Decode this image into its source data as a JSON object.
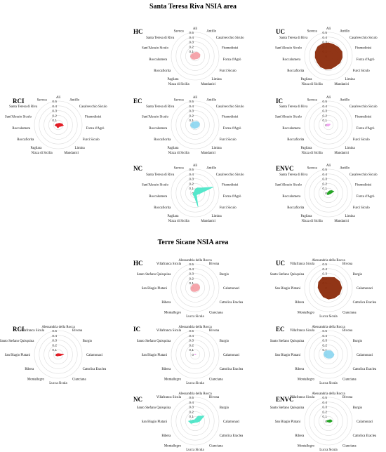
{
  "sections": [
    {
      "title": "Santa Teresa Riva NSIA area"
    },
    {
      "title": "Terre Sicane NSIA area"
    }
  ],
  "chart_data": [
    {
      "type": "radar",
      "section": 0,
      "title": "HC",
      "color": "#f4a0a6",
      "rlim": [
        0,
        0.5
      ],
      "rticks": [
        "0",
        "0.1",
        "0.2",
        "0.3",
        "0.4",
        "0.5"
      ],
      "categories": [
        "Alì",
        "Antillo",
        "Casalvecchio Siculo",
        "Fiumedinisi",
        "Forza d'Agrò",
        "Furci Siculo",
        "Limina",
        "Mandanici",
        "Nizza di Sicilia",
        "Pagliara",
        "Roccafiorita",
        "Roccalumera",
        "Sant'Alessio Siculo",
        "Santa Teresa di Riva",
        "Savoca"
      ],
      "values": [
        0.08,
        0.09,
        0.1,
        0.11,
        0.1,
        0.08,
        0.07,
        0.06,
        0.07,
        0.08,
        0.09,
        0.1,
        0.09,
        0.08,
        0.07
      ]
    },
    {
      "type": "radar",
      "section": 0,
      "title": "UC",
      "color": "#8b2a0a",
      "rlim": [
        0,
        0.5
      ],
      "rticks": [
        "0",
        "0.1",
        "0.2",
        "0.3",
        "0.4",
        "0.5"
      ],
      "categories": [
        "Alì",
        "Antillo",
        "Casalvecchio Siculo",
        "Fiumedinisi",
        "Forza d'Agrò",
        "Furci Siculo",
        "Limina",
        "Mandanici",
        "Nizza di Sicilia",
        "Pagliara",
        "Roccafiorita",
        "Roccalumera",
        "Sant'Alessio Siculo",
        "Santa Teresa di Riva",
        "Savoca"
      ],
      "values": [
        0.28,
        0.27,
        0.28,
        0.3,
        0.29,
        0.28,
        0.26,
        0.27,
        0.28,
        0.28,
        0.27,
        0.28,
        0.29,
        0.3,
        0.29
      ]
    },
    {
      "type": "radar",
      "section": 0,
      "title": "RCI",
      "color": "#e3121b",
      "rlim": [
        0,
        0.5
      ],
      "rticks": [
        "0",
        "0.1",
        "0.2",
        "0.3",
        "0.4",
        "0.5"
      ],
      "categories": [
        "Alì",
        "Antillo",
        "Casalvecchio Siculo",
        "Fiumedinisi",
        "Forza d'Agrò",
        "Furci Siculo",
        "Limina",
        "Mandanici",
        "Nizza di Sicilia",
        "Pagliara",
        "Roccafiorita",
        "Roccalumera",
        "Sant'Alessio Siculo",
        "Santa Teresa di Riva",
        "Savoca"
      ],
      "values": [
        0.03,
        0.04,
        0.05,
        0.08,
        0.11,
        0.06,
        0.04,
        0.05,
        0.06,
        0.05,
        0.04,
        0.07,
        0.05,
        0.04,
        0.03
      ]
    },
    {
      "type": "radar",
      "section": 0,
      "title": "EC",
      "color": "#8fd7f0",
      "rlim": [
        0,
        0.5
      ],
      "rticks": [
        "0",
        "0.1",
        "0.2",
        "0.3",
        "0.4",
        "0.5"
      ],
      "categories": [
        "Alì",
        "Antillo",
        "Casalvecchio Siculo",
        "Fiumedinisi",
        "Forza d'Agrò",
        "Furci Siculo",
        "Limina",
        "Mandanici",
        "Nizza di Sicilia",
        "Pagliara",
        "Roccafiorita",
        "Roccalumera",
        "Sant'Alessio Siculo",
        "Santa Teresa di Riva",
        "Savoca"
      ],
      "values": [
        0.07,
        0.08,
        0.09,
        0.1,
        0.09,
        0.08,
        0.07,
        0.07,
        0.08,
        0.08,
        0.09,
        0.1,
        0.09,
        0.08,
        0.07
      ]
    },
    {
      "type": "radar",
      "section": 0,
      "title": "IC",
      "color": "#f0a0f0",
      "rlim": [
        0,
        0.5
      ],
      "rticks": [
        "0",
        "0.1",
        "0.2",
        "0.3",
        "0.4",
        "0.5"
      ],
      "categories": [
        "Alì",
        "Antillo",
        "Casalvecchio Siculo",
        "Fiumedinisi",
        "Forza d'Agrò",
        "Furci Siculo",
        "Limina",
        "Mandanici",
        "Nizza di Sicilia",
        "Pagliara",
        "Roccafiorita",
        "Roccalumera",
        "Sant'Alessio Siculo",
        "Santa Teresa di Riva",
        "Savoca"
      ],
      "values": [
        0.02,
        0.02,
        0.03,
        0.04,
        0.03,
        0.02,
        0.02,
        0.02,
        0.03,
        0.03,
        0.04,
        0.05,
        0.04,
        0.03,
        0.02
      ]
    },
    {
      "type": "radar",
      "section": 0,
      "title": "NC",
      "color": "#4de6c8",
      "rlim": [
        0,
        0.5
      ],
      "rticks": [
        "0",
        "0.1",
        "0.2",
        "0.3",
        "0.4",
        "0.5"
      ],
      "categories": [
        "Alì",
        "Antillo",
        "Casalvecchio Siculo",
        "Fiumedinisi",
        "Forza d'Agrò",
        "Furci Siculo",
        "Limina",
        "Mandanici",
        "Nizza di Sicilia",
        "Pagliara",
        "Roccafiorita",
        "Roccalumera",
        "Sant'Alessio Siculo",
        "Santa Teresa di Riva",
        "Savoca"
      ],
      "values": [
        0.08,
        0.12,
        0.16,
        0.4,
        0.1,
        0.06,
        0.05,
        0.3,
        0.08,
        0.06,
        0.05,
        0.04,
        0.03,
        0.03,
        0.04
      ]
    },
    {
      "type": "radar",
      "section": 0,
      "title": "ENVC",
      "color": "#1aa01a",
      "rlim": [
        0,
        0.5
      ],
      "rticks": [
        "0",
        "0.1",
        "0.2",
        "0.3",
        "0.4",
        "0.5"
      ],
      "categories": [
        "Alì",
        "Antillo",
        "Casalvecchio Siculo",
        "Fiumedinisi",
        "Forza d'Agrò",
        "Furci Siculo",
        "Limina",
        "Mandanici",
        "Nizza di Sicilia",
        "Pagliara",
        "Roccafiorita",
        "Roccalumera",
        "Sant'Alessio Siculo",
        "Santa Teresa di Riva",
        "Savoca"
      ],
      "values": [
        0.03,
        0.05,
        0.08,
        0.12,
        0.06,
        0.04,
        0.03,
        0.03,
        0.04,
        0.04,
        0.03,
        0.03,
        0.02,
        0.02,
        0.02
      ]
    },
    {
      "type": "radar",
      "section": 1,
      "title": "HC",
      "color": "#f4a0a6",
      "rlim": [
        0,
        0.5
      ],
      "rticks": [
        "0",
        "0.1",
        "0.2",
        "0.3",
        "0.4",
        "0.5"
      ],
      "categories": [
        "Alessandria della Rocca",
        "Bivona",
        "Burgio",
        "Calamonaci",
        "Cattolica Eraclea",
        "Cianciana",
        "Lucca Sicula",
        "Montallegro",
        "Ribera",
        "San Biagio Platani",
        "Santo Stefano Quisquina",
        "Villafranca Sicula"
      ],
      "values": [
        0.08,
        0.09,
        0.1,
        0.1,
        0.09,
        0.08,
        0.08,
        0.09,
        0.1,
        0.09,
        0.08,
        0.08
      ]
    },
    {
      "type": "radar",
      "section": 1,
      "title": "UC",
      "color": "#8b2a0a",
      "rlim": [
        0,
        0.5
      ],
      "rticks": [
        "0",
        "0.1",
        "0.2",
        "0.3",
        "0.4",
        "0.5"
      ],
      "categories": [
        "Alessandria della Rocca",
        "Bivona",
        "Burgio",
        "Calamonaci",
        "Cattolica Eraclea",
        "Cianciana",
        "Lucca Sicula",
        "Montallegro",
        "Ribera",
        "San Biagio Platani",
        "Santo Stefano Quisquina",
        "Villafranca Sicula"
      ],
      "values": [
        0.22,
        0.25,
        0.27,
        0.28,
        0.27,
        0.25,
        0.24,
        0.22,
        0.2,
        0.22,
        0.24,
        0.25
      ]
    },
    {
      "type": "radar",
      "section": 1,
      "title": "RCI",
      "color": "#e3121b",
      "rlim": [
        0,
        0.5
      ],
      "rticks": [
        "0",
        "0.1",
        "0.2",
        "0.3",
        "0.4",
        "0.5"
      ],
      "categories": [
        "Alessandria della Rocca",
        "Bivona",
        "Burgio",
        "Calamonaci",
        "Cattolica Eraclea",
        "Cianciana",
        "Lucca Sicula",
        "Montallegro",
        "Ribera",
        "San Biagio Platani",
        "Santo Stefano Quisquina",
        "Villafranca Sicula"
      ],
      "values": [
        0.02,
        0.02,
        0.03,
        0.12,
        0.05,
        0.03,
        0.03,
        0.04,
        0.05,
        0.04,
        0.03,
        0.02
      ]
    },
    {
      "type": "radar",
      "section": 1,
      "title": "IC",
      "color": "#f0a0f0",
      "rlim": [
        0,
        0.5
      ],
      "rticks": [
        "0",
        "0.1",
        "0.2",
        "0.3",
        "0.4",
        "0.5"
      ],
      "categories": [
        "Alessandria della Rocca",
        "Bivona",
        "Burgio",
        "Calamonaci",
        "Cattolica Eraclea",
        "Cianciana",
        "Lucca Sicula",
        "Montallegro",
        "Ribera",
        "San Biagio Platani",
        "Santo Stefano Quisquina",
        "Villafranca Sicula"
      ],
      "values": [
        0.01,
        0.01,
        0.01,
        0.02,
        0.01,
        0.01,
        0.01,
        0.01,
        0.01,
        0.01,
        0.01,
        0.01
      ]
    },
    {
      "type": "radar",
      "section": 1,
      "title": "EC",
      "color": "#8fd7f0",
      "rlim": [
        0,
        0.5
      ],
      "rticks": [
        "0",
        "0.1",
        "0.2",
        "0.3",
        "0.4",
        "0.5"
      ],
      "categories": [
        "Alessandria della Rocca",
        "Bivona",
        "Burgio",
        "Calamonaci",
        "Cattolica Eraclea",
        "Cianciana",
        "Lucca Sicula",
        "Montallegro",
        "Ribera",
        "San Biagio Platani",
        "Santo Stefano Quisquina",
        "Villafranca Sicula"
      ],
      "values": [
        0.08,
        0.09,
        0.1,
        0.12,
        0.11,
        0.09,
        0.08,
        0.08,
        0.09,
        0.1,
        0.1,
        0.09
      ]
    },
    {
      "type": "radar",
      "section": 1,
      "title": "NC",
      "color": "#4de6c8",
      "rlim": [
        0,
        0.5
      ],
      "rticks": [
        "0",
        "0.1",
        "0.2",
        "0.3",
        "0.4",
        "0.5"
      ],
      "categories": [
        "Alessandria della Rocca",
        "Bivona",
        "Burgio",
        "Calamonaci",
        "Cattolica Eraclea",
        "Cianciana",
        "Lucca Sicula",
        "Montallegro",
        "Ribera",
        "San Biagio Platani",
        "Santo Stefano Quisquina",
        "Villafranca Sicula"
      ],
      "values": [
        0.04,
        0.12,
        0.22,
        0.1,
        0.05,
        0.03,
        0.03,
        0.04,
        0.1,
        0.14,
        0.05,
        0.03
      ]
    },
    {
      "type": "radar",
      "section": 1,
      "title": "ENVC",
      "color": "#1aa01a",
      "rlim": [
        0,
        0.5
      ],
      "rticks": [
        "0",
        "0.1",
        "0.2",
        "0.3",
        "0.4",
        "0.5"
      ],
      "categories": [
        "Alessandria della Rocca",
        "Bivona",
        "Burgio",
        "Calamonaci",
        "Cattolica Eraclea",
        "Cianciana",
        "Lucca Sicula",
        "Montallegro",
        "Ribera",
        "San Biagio Platani",
        "Santo Stefano Quisquina",
        "Villafranca Sicula"
      ],
      "values": [
        0.02,
        0.03,
        0.06,
        0.08,
        0.05,
        0.03,
        0.02,
        0.02,
        0.03,
        0.04,
        0.03,
        0.02
      ]
    }
  ]
}
